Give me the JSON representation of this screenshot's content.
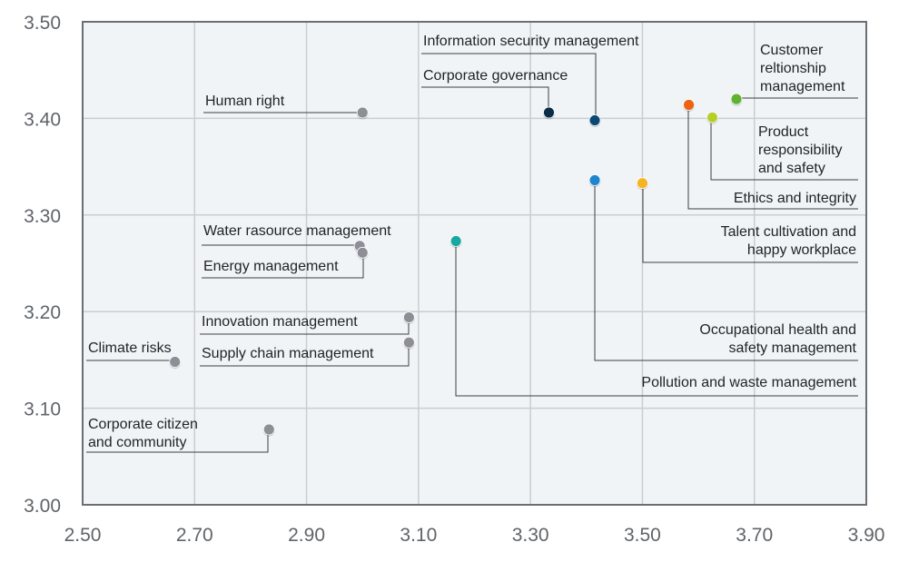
{
  "chart_data": {
    "type": "scatter",
    "title": "",
    "xlabel": "",
    "ylabel": "",
    "xlim": [
      2.5,
      3.9
    ],
    "ylim": [
      3.0,
      3.5
    ],
    "x_ticks": [
      "2.50",
      "2.70",
      "2.90",
      "3.10",
      "3.30",
      "3.50",
      "3.70",
      "3.90"
    ],
    "y_ticks": [
      "3.00",
      "3.10",
      "3.20",
      "3.30",
      "3.40",
      "3.50"
    ],
    "grid": true,
    "legend": "none",
    "colors": {
      "plot_bg": "#f1f4f7",
      "grid": "#c9cdd1",
      "frame": "#6b6e72"
    },
    "points": [
      {
        "label": "Information security management",
        "x": 3.415,
        "y": 3.398,
        "color": "#0a4a72",
        "label_lines": [
          "Information security management"
        ]
      },
      {
        "label": "Corporate governance",
        "x": 3.333,
        "y": 3.406,
        "color": "#0b2d4a",
        "label_lines": [
          "Corporate governance"
        ]
      },
      {
        "label": "Human right",
        "x": 3.0,
        "y": 3.406,
        "color": "#8c9096",
        "label_lines": [
          "Human right"
        ]
      },
      {
        "label": "Customer reltionship management",
        "x": 3.668,
        "y": 3.42,
        "color": "#5fb233",
        "label_lines": [
          "Customer",
          "reltionship",
          "management"
        ]
      },
      {
        "label": "Product responsibility and safety",
        "x": 3.625,
        "y": 3.401,
        "color": "#b5cf2a",
        "label_lines": [
          "Product",
          "responsibility",
          "and safety"
        ]
      },
      {
        "label": "Ethics and integrity",
        "x": 3.583,
        "y": 3.414,
        "color": "#ec6412",
        "label_lines": [
          "Ethics and integrity"
        ]
      },
      {
        "label": "Talent cultivation and happy workplace",
        "x": 3.5,
        "y": 3.333,
        "color": "#f4b522",
        "label_lines": [
          "Talent cultivation and",
          "happy workplace"
        ]
      },
      {
        "label": "Occupational health and safety management",
        "x": 3.415,
        "y": 3.336,
        "color": "#1e86cf",
        "label_lines": [
          "Occupational health and",
          "safety management"
        ]
      },
      {
        "label": "Pollution and waste management",
        "x": 3.167,
        "y": 3.273,
        "color": "#17a9a0",
        "label_lines": [
          "Pollution and waste management"
        ]
      },
      {
        "label": "Water rasource management",
        "x": 2.995,
        "y": 3.268,
        "color": "#8c9096",
        "label_lines": [
          "Water rasource management"
        ]
      },
      {
        "label": "Energy management",
        "x": 3.0,
        "y": 3.261,
        "color": "#8c9096",
        "label_lines": [
          "Energy management"
        ]
      },
      {
        "label": "Innovation management",
        "x": 3.083,
        "y": 3.194,
        "color": "#8c9096",
        "label_lines": [
          "Innovation management"
        ]
      },
      {
        "label": "Supply chain management",
        "x": 3.083,
        "y": 3.168,
        "color": "#8c9096",
        "label_lines": [
          "Supply chain management"
        ]
      },
      {
        "label": "Climate risks",
        "x": 2.665,
        "y": 3.148,
        "color": "#8c9096",
        "label_lines": [
          "Climate risks"
        ]
      },
      {
        "label": "Corporate citizen and community",
        "x": 2.833,
        "y": 3.078,
        "color": "#8c9096",
        "label_lines": [
          "Corporate citizen",
          "and community"
        ]
      }
    ]
  }
}
